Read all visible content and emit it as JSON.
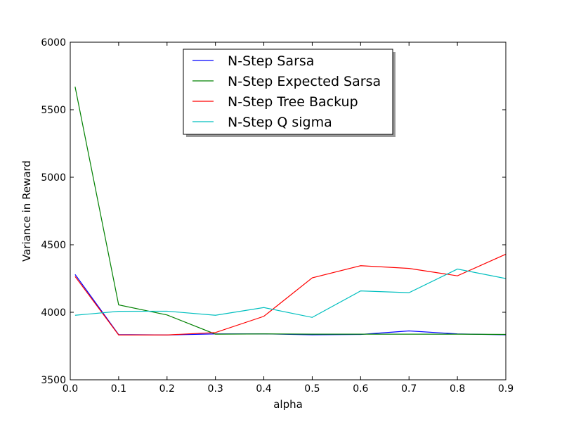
{
  "chart_data": {
    "type": "line",
    "xlabel": "alpha",
    "ylabel": "Variance in Reward",
    "xlim": [
      0.0,
      0.9
    ],
    "ylim": [
      3500,
      6000
    ],
    "xticks": [
      0.0,
      0.1,
      0.2,
      0.3,
      0.4,
      0.5,
      0.6,
      0.7,
      0.8,
      0.9
    ],
    "xtick_labels": [
      "0.0",
      "0.1",
      "0.2",
      "0.3",
      "0.4",
      "0.5",
      "0.6",
      "0.7",
      "0.8",
      "0.9"
    ],
    "yticks": [
      3500,
      4000,
      4500,
      5000,
      5500,
      6000
    ],
    "ytick_labels": [
      "3500",
      "4000",
      "4500",
      "5000",
      "5500",
      "6000"
    ],
    "grid": false,
    "legend_position": "top-center",
    "x": [
      0.01,
      0.1,
      0.2,
      0.3,
      0.4,
      0.5,
      0.6,
      0.7,
      0.8,
      0.9
    ],
    "series": [
      {
        "name": "N-Step Sarsa",
        "color": "#0000ff",
        "values": [
          4280,
          3835,
          3832,
          3840,
          3840,
          3833,
          3836,
          3862,
          3840,
          3833
        ]
      },
      {
        "name": "N-Step Expected Sarsa",
        "color": "#008000",
        "values": [
          5670,
          4055,
          3980,
          3838,
          3840,
          3838,
          3838,
          3838,
          3838,
          3836
        ]
      },
      {
        "name": "N-Step Tree Backup",
        "color": "#ff0000",
        "values": [
          4265,
          3832,
          3832,
          3850,
          3970,
          4255,
          4345,
          4325,
          4270,
          4430
        ]
      },
      {
        "name": "N-Step Q sigma",
        "color": "#00bfbf",
        "values": [
          3978,
          4007,
          4008,
          3978,
          4035,
          3962,
          4158,
          4145,
          4320,
          4250
        ]
      }
    ]
  }
}
